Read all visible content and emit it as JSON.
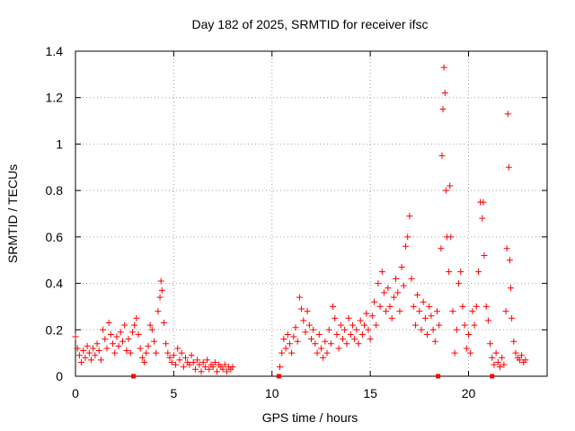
{
  "chart_data": {
    "type": "scatter",
    "title": "Day 182 of 2025, SRMTID for receiver ifsc",
    "xlabel": "GPS time / hours",
    "ylabel": "SRMTID / TECUs",
    "xlim": [
      0,
      24
    ],
    "ylim": [
      0,
      1.4
    ],
    "xticks": [
      "0",
      "5",
      "10",
      "15",
      "20"
    ],
    "yticks": [
      "0",
      "0.2",
      "0.4",
      "0.6",
      "0.8",
      "1",
      "1.2",
      "1.4"
    ],
    "grid": true,
    "marker": "+",
    "color": "#ff0000",
    "series": [
      {
        "name": "SRMTID",
        "points": [
          [
            0.0,
            0.17
          ],
          [
            0.1,
            0.12
          ],
          [
            0.2,
            0.09
          ],
          [
            0.3,
            0.06
          ],
          [
            0.4,
            0.11
          ],
          [
            0.5,
            0.08
          ],
          [
            0.6,
            0.13
          ],
          [
            0.7,
            0.1
          ],
          [
            0.8,
            0.07
          ],
          [
            0.9,
            0.12
          ],
          [
            1.0,
            0.09
          ],
          [
            1.1,
            0.14
          ],
          [
            1.2,
            0.11
          ],
          [
            1.3,
            0.07
          ],
          [
            1.4,
            0.2
          ],
          [
            1.5,
            0.16
          ],
          [
            1.6,
            0.12
          ],
          [
            1.7,
            0.23
          ],
          [
            1.8,
            0.18
          ],
          [
            1.9,
            0.14
          ],
          [
            2.0,
            0.1
          ],
          [
            2.1,
            0.17
          ],
          [
            2.2,
            0.13
          ],
          [
            2.3,
            0.19
          ],
          [
            2.4,
            0.15
          ],
          [
            2.5,
            0.22
          ],
          [
            2.6,
            0.11
          ],
          [
            2.7,
            0.16
          ],
          [
            2.8,
            0.1
          ],
          [
            2.9,
            0.19
          ],
          [
            3.0,
            0.22
          ],
          [
            3.1,
            0.25
          ],
          [
            3.2,
            0.18
          ],
          [
            3.3,
            0.12
          ],
          [
            3.4,
            0.08
          ],
          [
            3.5,
            0.06
          ],
          [
            3.6,
            0.1
          ],
          [
            3.7,
            0.13
          ],
          [
            3.8,
            0.22
          ],
          [
            3.9,
            0.2
          ],
          [
            4.0,
            0.15
          ],
          [
            4.1,
            0.1
          ],
          [
            4.2,
            0.28
          ],
          [
            4.3,
            0.34
          ],
          [
            4.35,
            0.41
          ],
          [
            4.4,
            0.37
          ],
          [
            4.5,
            0.23
          ],
          [
            4.6,
            0.14
          ],
          [
            4.7,
            0.1
          ],
          [
            4.8,
            0.08
          ],
          [
            4.9,
            0.06
          ],
          [
            5.0,
            0.09
          ],
          [
            5.1,
            0.05
          ],
          [
            5.2,
            0.12
          ],
          [
            5.3,
            0.07
          ],
          [
            5.4,
            0.1
          ],
          [
            5.5,
            0.04
          ],
          [
            5.6,
            0.08
          ],
          [
            5.7,
            0.06
          ],
          [
            5.8,
            0.05
          ],
          [
            5.9,
            0.09
          ],
          [
            6.0,
            0.06
          ],
          [
            6.1,
            0.03
          ],
          [
            6.2,
            0.07
          ],
          [
            6.3,
            0.05
          ],
          [
            6.4,
            0.02
          ],
          [
            6.5,
            0.06
          ],
          [
            6.6,
            0.04
          ],
          [
            6.7,
            0.07
          ],
          [
            6.8,
            0.03
          ],
          [
            6.9,
            0.05
          ],
          [
            7.0,
            0.04
          ],
          [
            7.1,
            0.06
          ],
          [
            7.2,
            0.02
          ],
          [
            7.3,
            0.05
          ],
          [
            7.4,
            0.04
          ],
          [
            7.5,
            0.03
          ],
          [
            7.6,
            0.05
          ],
          [
            7.7,
            0.02
          ],
          [
            7.8,
            0.04
          ],
          [
            7.9,
            0.03
          ],
          [
            8.0,
            0.04
          ],
          [
            10.4,
            0.04
          ],
          [
            10.5,
            0.1
          ],
          [
            10.6,
            0.16
          ],
          [
            10.7,
            0.12
          ],
          [
            10.8,
            0.18
          ],
          [
            10.9,
            0.14
          ],
          [
            11.0,
            0.1
          ],
          [
            11.1,
            0.17
          ],
          [
            11.2,
            0.21
          ],
          [
            11.3,
            0.15
          ],
          [
            11.4,
            0.34
          ],
          [
            11.5,
            0.29
          ],
          [
            11.6,
            0.24
          ],
          [
            11.7,
            0.19
          ],
          [
            11.8,
            0.28
          ],
          [
            11.9,
            0.22
          ],
          [
            12.0,
            0.16
          ],
          [
            12.1,
            0.2
          ],
          [
            12.2,
            0.14
          ],
          [
            12.3,
            0.1
          ],
          [
            12.4,
            0.18
          ],
          [
            12.5,
            0.12
          ],
          [
            12.6,
            0.08
          ],
          [
            12.7,
            0.15
          ],
          [
            12.8,
            0.1
          ],
          [
            12.9,
            0.2
          ],
          [
            13.0,
            0.14
          ],
          [
            13.1,
            0.3
          ],
          [
            13.2,
            0.25
          ],
          [
            13.3,
            0.18
          ],
          [
            13.4,
            0.12
          ],
          [
            13.5,
            0.22
          ],
          [
            13.6,
            0.16
          ],
          [
            13.7,
            0.2
          ],
          [
            13.8,
            0.14
          ],
          [
            13.9,
            0.25
          ],
          [
            14.0,
            0.18
          ],
          [
            14.1,
            0.22
          ],
          [
            14.2,
            0.16
          ],
          [
            14.3,
            0.2
          ],
          [
            14.4,
            0.14
          ],
          [
            14.5,
            0.24
          ],
          [
            14.6,
            0.18
          ],
          [
            14.7,
            0.22
          ],
          [
            14.8,
            0.27
          ],
          [
            14.9,
            0.2
          ],
          [
            15.0,
            0.16
          ],
          [
            15.1,
            0.26
          ],
          [
            15.2,
            0.32
          ],
          [
            15.3,
            0.22
          ],
          [
            15.4,
            0.4
          ],
          [
            15.5,
            0.3
          ],
          [
            15.6,
            0.45
          ],
          [
            15.7,
            0.36
          ],
          [
            15.8,
            0.28
          ],
          [
            15.9,
            0.38
          ],
          [
            16.0,
            0.3
          ],
          [
            16.1,
            0.25
          ],
          [
            16.2,
            0.34
          ],
          [
            16.3,
            0.42
          ],
          [
            16.4,
            0.36
          ],
          [
            16.5,
            0.28
          ],
          [
            16.6,
            0.47
          ],
          [
            16.7,
            0.39
          ],
          [
            16.8,
            0.56
          ],
          [
            16.9,
            0.6
          ],
          [
            17.0,
            0.69
          ],
          [
            17.1,
            0.42
          ],
          [
            17.2,
            0.3
          ],
          [
            17.3,
            0.22
          ],
          [
            17.4,
            0.35
          ],
          [
            17.5,
            0.28
          ],
          [
            17.6,
            0.2
          ],
          [
            17.7,
            0.32
          ],
          [
            17.8,
            0.25
          ],
          [
            17.9,
            0.18
          ],
          [
            18.0,
            0.3
          ],
          [
            18.1,
            0.26
          ],
          [
            18.2,
            0.2
          ],
          [
            18.3,
            0.15
          ],
          [
            18.4,
            0.28
          ],
          [
            18.5,
            0.22
          ],
          [
            18.6,
            0.55
          ],
          [
            18.65,
            0.95
          ],
          [
            18.7,
            1.15
          ],
          [
            18.75,
            1.33
          ],
          [
            18.8,
            1.22
          ],
          [
            18.85,
            0.8
          ],
          [
            18.9,
            0.6
          ],
          [
            19.0,
            0.45
          ],
          [
            19.05,
            0.82
          ],
          [
            19.1,
            0.6
          ],
          [
            19.2,
            0.28
          ],
          [
            19.3,
            0.1
          ],
          [
            19.4,
            0.2
          ],
          [
            19.5,
            0.4
          ],
          [
            19.6,
            0.45
          ],
          [
            19.7,
            0.3
          ],
          [
            19.8,
            0.22
          ],
          [
            19.9,
            0.12
          ],
          [
            20.0,
            0.18
          ],
          [
            20.1,
            0.1
          ],
          [
            20.2,
            0.28
          ],
          [
            20.3,
            0.22
          ],
          [
            20.4,
            0.3
          ],
          [
            20.5,
            0.45
          ],
          [
            20.6,
            0.75
          ],
          [
            20.7,
            0.68
          ],
          [
            20.75,
            0.75
          ],
          [
            20.8,
            0.52
          ],
          [
            20.9,
            0.3
          ],
          [
            21.0,
            0.24
          ],
          [
            21.1,
            0.14
          ],
          [
            21.2,
            0.08
          ],
          [
            21.3,
            0.05
          ],
          [
            21.4,
            0.1
          ],
          [
            21.5,
            0.06
          ],
          [
            21.6,
            0.04
          ],
          [
            21.7,
            0.08
          ],
          [
            21.8,
            0.05
          ],
          [
            21.9,
            0.28
          ],
          [
            21.95,
            0.55
          ],
          [
            22.0,
            1.13
          ],
          [
            22.05,
            0.9
          ],
          [
            22.1,
            0.5
          ],
          [
            22.15,
            0.38
          ],
          [
            22.2,
            0.25
          ],
          [
            22.3,
            0.15
          ],
          [
            22.4,
            0.1
          ],
          [
            22.5,
            0.08
          ],
          [
            22.6,
            0.07
          ],
          [
            22.7,
            0.09
          ],
          [
            22.8,
            0.06
          ],
          [
            22.9,
            0.07
          ]
        ]
      },
      {
        "name": "gap markers",
        "marker": "square",
        "points": [
          [
            2.95,
            0
          ],
          [
            10.35,
            0
          ],
          [
            18.45,
            0
          ],
          [
            21.2,
            0
          ]
        ]
      }
    ]
  }
}
